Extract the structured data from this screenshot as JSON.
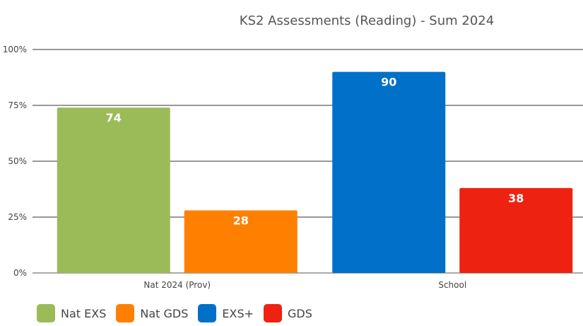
{
  "chart_data": {
    "type": "bar",
    "title": "KS2 Assessments (Reading) - Sum 2024",
    "y_ticks": [
      "0%",
      "25%",
      "50%",
      "75%",
      "100%"
    ],
    "ylim": [
      0,
      100
    ],
    "grid": true,
    "legend_position": "bottom-left",
    "groups": [
      {
        "category": "Nat 2024 (Prov)",
        "bars": [
          {
            "series": "Nat EXS",
            "value": 74
          },
          {
            "series": "Nat GDS",
            "value": 28
          }
        ]
      },
      {
        "category": "School",
        "bars": [
          {
            "series": "EXS+",
            "value": 90
          },
          {
            "series": "GDS",
            "value": 38
          }
        ]
      }
    ],
    "series": [
      {
        "name": "Nat EXS",
        "color": "#9bbb59"
      },
      {
        "name": "Nat GDS",
        "color": "#ff8000"
      },
      {
        "name": "EXS+",
        "color": "#0070c8"
      },
      {
        "name": "GDS",
        "color": "#ee2211"
      }
    ]
  }
}
